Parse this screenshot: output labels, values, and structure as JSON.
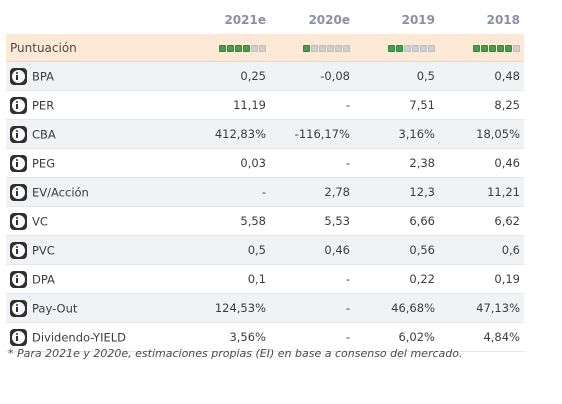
{
  "headers": [
    "2021e",
    "2020e",
    "2019",
    "2018"
  ],
  "score": {
    "label": "Puntuación",
    "ratings": [
      4,
      1,
      2,
      5
    ],
    "max": 6,
    "colors": {
      "on": "#3fa14b",
      "off": "#cfd0d4"
    }
  },
  "icon": "info-icon",
  "rows": [
    {
      "label": "BPA",
      "values": [
        "0,25",
        "-0,08",
        "0,5",
        "0,48"
      ]
    },
    {
      "label": "PER",
      "values": [
        "11,19",
        "-",
        "7,51",
        "8,25"
      ]
    },
    {
      "label": "CBA",
      "values": [
        "412,83%",
        "-116,17%",
        "3,16%",
        "18,05%"
      ]
    },
    {
      "label": "PEG",
      "values": [
        "0,03",
        "-",
        "2,38",
        "0,46"
      ]
    },
    {
      "label": "EV/Acción",
      "values": [
        "-",
        "2,78",
        "12,3",
        "11,21"
      ]
    },
    {
      "label": "VC",
      "values": [
        "5,58",
        "5,53",
        "6,66",
        "6,62"
      ]
    },
    {
      "label": "PVC",
      "values": [
        "0,5",
        "0,46",
        "0,56",
        "0,6"
      ]
    },
    {
      "label": "DPA",
      "values": [
        "0,1",
        "-",
        "0,22",
        "0,19"
      ]
    },
    {
      "label": "Pay-Out",
      "values": [
        "124,53%",
        "-",
        "46,68%",
        "47,13%"
      ]
    },
    {
      "label": "Dividendo-YIELD",
      "values": [
        "3,56%",
        "-",
        "6,02%",
        "4,84%"
      ]
    }
  ],
  "footnote": "* Para 2021e y 2020e, estimaciones propias (EI) en base a consenso del mercado."
}
